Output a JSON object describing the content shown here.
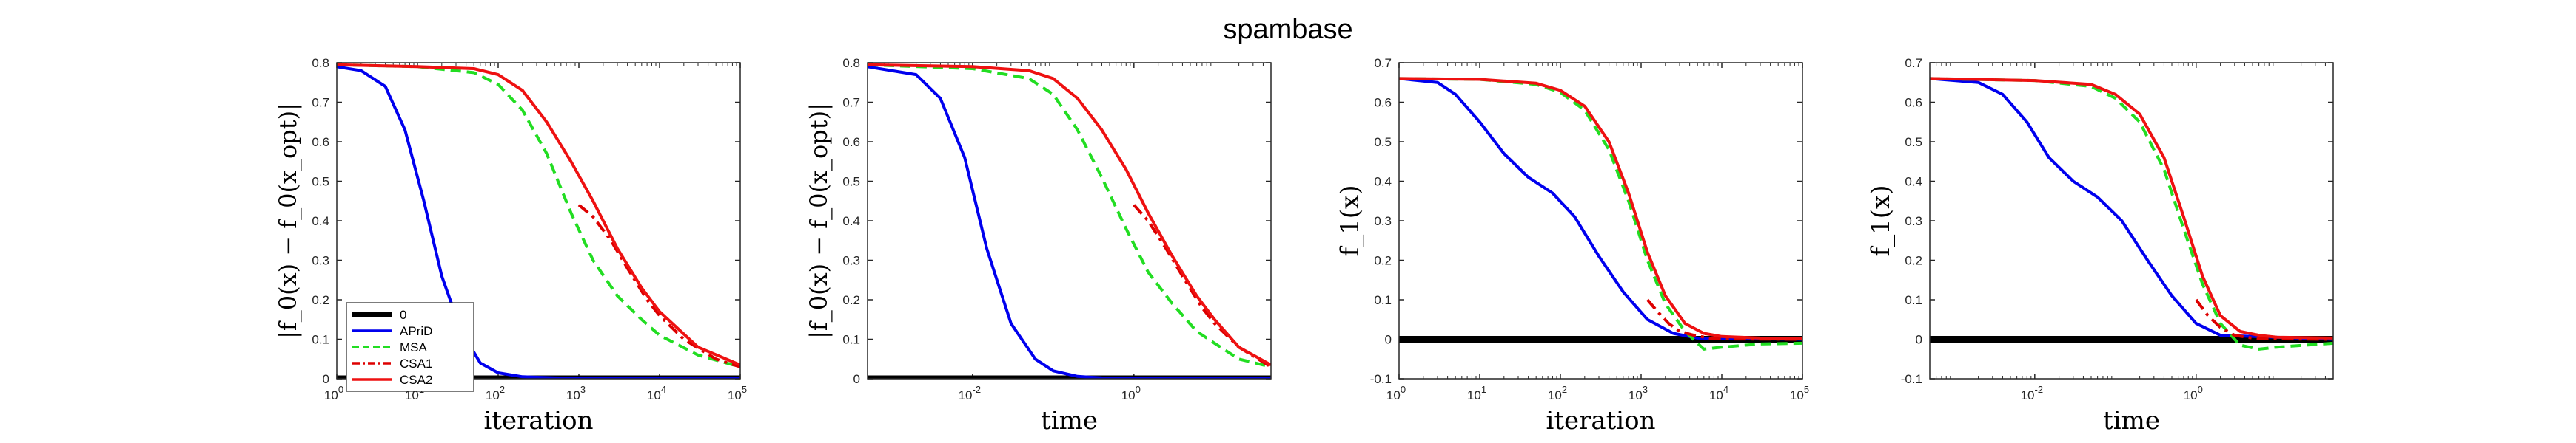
{
  "title": "spambase",
  "colors": {
    "zero": "#000000",
    "apd": "#0000ee",
    "msa": "#22dd22",
    "csa1": "#dd0000",
    "csa2": "#ee1111"
  },
  "legend": {
    "placement": "lower-left of first panel",
    "entries": [
      "0",
      "APriD",
      "MSA",
      "CSA1",
      "CSA2"
    ]
  },
  "chart_data": [
    {
      "type": "line",
      "xlabel": "iteration",
      "ylabel": "|f_0(x) − f_0(x_opt)|",
      "xscale": "log",
      "xlim": [
        1,
        100000
      ],
      "ylim": [
        0,
        0.8
      ],
      "xticks": [
        "10^0",
        "10^1",
        "10^2",
        "10^3",
        "10^4",
        "10^5"
      ],
      "yticks": [
        "0",
        "0.1",
        "0.2",
        "0.3",
        "0.4",
        "0.5",
        "0.6",
        "0.7",
        "0.8"
      ],
      "series": [
        {
          "name": "0",
          "style": "solid-thick",
          "x": [
            1,
            100000
          ],
          "y": [
            0,
            0
          ]
        },
        {
          "name": "APriD",
          "style": "solid",
          "x": [
            1,
            2,
            4,
            7,
            12,
            20,
            35,
            60,
            100,
            200,
            500,
            1000,
            100000
          ],
          "y": [
            0.79,
            0.78,
            0.74,
            0.63,
            0.45,
            0.26,
            0.12,
            0.04,
            0.015,
            0.005,
            0.002,
            0.001,
            0.0
          ]
        },
        {
          "name": "MSA",
          "style": "dashed",
          "x": [
            1,
            10,
            50,
            100,
            200,
            400,
            800,
            1500,
            3000,
            6000,
            10000,
            30000,
            100000
          ],
          "y": [
            0.795,
            0.79,
            0.775,
            0.745,
            0.68,
            0.57,
            0.42,
            0.3,
            0.21,
            0.15,
            0.11,
            0.06,
            0.03
          ]
        },
        {
          "name": "CSA1",
          "style": "dashdot",
          "x": [
            1000,
            1500,
            2500,
            4000,
            7000,
            10000,
            20000,
            50000,
            100000
          ],
          "y": [
            0.44,
            0.41,
            0.35,
            0.28,
            0.2,
            0.16,
            0.1,
            0.05,
            0.03
          ]
        },
        {
          "name": "CSA2",
          "style": "solid",
          "x": [
            1,
            10,
            50,
            100,
            200,
            400,
            800,
            1500,
            3000,
            6000,
            10000,
            30000,
            100000
          ],
          "y": [
            0.795,
            0.79,
            0.785,
            0.77,
            0.73,
            0.65,
            0.55,
            0.45,
            0.33,
            0.23,
            0.17,
            0.08,
            0.035
          ]
        }
      ]
    },
    {
      "type": "line",
      "xlabel": "time",
      "ylabel": "|f_0(x) − f_0(x_opt)|",
      "xscale": "log",
      "xlim": [
        0.0005,
        50
      ],
      "ylim": [
        0,
        0.8
      ],
      "xticks": [
        "10^-2",
        "10^0"
      ],
      "yticks": [
        "0",
        "0.1",
        "0.2",
        "0.3",
        "0.4",
        "0.5",
        "0.6",
        "0.7",
        "0.8"
      ],
      "series": [
        {
          "name": "0",
          "style": "solid-thick",
          "x": [
            0.0005,
            50
          ],
          "y": [
            0,
            0
          ]
        },
        {
          "name": "APriD",
          "style": "solid",
          "x": [
            0.0005,
            0.002,
            0.004,
            0.008,
            0.015,
            0.03,
            0.06,
            0.1,
            0.2,
            0.4,
            50
          ],
          "y": [
            0.79,
            0.77,
            0.71,
            0.56,
            0.33,
            0.14,
            0.05,
            0.02,
            0.006,
            0.002,
            0.0
          ]
        },
        {
          "name": "MSA",
          "style": "dashed",
          "x": [
            0.0005,
            0.01,
            0.05,
            0.1,
            0.2,
            0.4,
            0.8,
            1.5,
            3,
            6,
            10,
            20,
            50
          ],
          "y": [
            0.795,
            0.785,
            0.76,
            0.72,
            0.63,
            0.51,
            0.38,
            0.27,
            0.19,
            0.12,
            0.09,
            0.05,
            0.03
          ]
        },
        {
          "name": "CSA1",
          "style": "dashdot",
          "x": [
            1,
            1.5,
            2.5,
            4,
            7,
            10,
            20,
            50
          ],
          "y": [
            0.44,
            0.4,
            0.33,
            0.26,
            0.18,
            0.14,
            0.08,
            0.03
          ]
        },
        {
          "name": "CSA2",
          "style": "solid",
          "x": [
            0.0005,
            0.01,
            0.05,
            0.1,
            0.2,
            0.4,
            0.8,
            1.5,
            3,
            6,
            10,
            20,
            50
          ],
          "y": [
            0.795,
            0.79,
            0.78,
            0.76,
            0.71,
            0.63,
            0.53,
            0.42,
            0.31,
            0.21,
            0.15,
            0.08,
            0.035
          ]
        }
      ]
    },
    {
      "type": "line",
      "xlabel": "iteration",
      "ylabel": "f_1(x)",
      "xscale": "log",
      "xlim": [
        1,
        100000
      ],
      "ylim": [
        -0.1,
        0.7
      ],
      "xticks": [
        "10^0",
        "10^1",
        "10^2",
        "10^3",
        "10^4",
        "10^5"
      ],
      "yticks": [
        "-0.1",
        "0",
        "0.1",
        "0.2",
        "0.3",
        "0.4",
        "0.5",
        "0.6",
        "0.7"
      ],
      "series": [
        {
          "name": "0",
          "style": "solid-thick",
          "x": [
            1,
            100000
          ],
          "y": [
            0,
            0
          ]
        },
        {
          "name": "APriD",
          "style": "solid",
          "x": [
            1,
            3,
            5,
            10,
            20,
            40,
            80,
            150,
            300,
            600,
            1200,
            2500,
            5000,
            100000
          ],
          "y": [
            0.66,
            0.65,
            0.62,
            0.55,
            0.47,
            0.41,
            0.37,
            0.31,
            0.21,
            0.12,
            0.05,
            0.015,
            0.003,
            0.0
          ]
        },
        {
          "name": "MSA",
          "style": "dashed",
          "x": [
            1,
            10,
            50,
            100,
            200,
            400,
            700,
            1200,
            2000,
            3500,
            6000,
            10000,
            30000,
            100000
          ],
          "y": [
            0.66,
            0.658,
            0.645,
            0.625,
            0.58,
            0.48,
            0.35,
            0.2,
            0.09,
            0.02,
            -0.025,
            -0.02,
            -0.012,
            -0.01
          ]
        },
        {
          "name": "CSA1",
          "style": "dashdot",
          "x": [
            1200,
            1600,
            2200,
            3000,
            4500,
            7000,
            10000,
            100000
          ],
          "y": [
            0.1,
            0.07,
            0.04,
            0.02,
            0.01,
            0.003,
            0.001,
            0.0
          ]
        },
        {
          "name": "CSA2",
          "style": "solid",
          "x": [
            1,
            10,
            50,
            100,
            200,
            400,
            700,
            1200,
            2000,
            3500,
            6000,
            10000,
            30000,
            100000
          ],
          "y": [
            0.66,
            0.658,
            0.648,
            0.63,
            0.59,
            0.5,
            0.37,
            0.22,
            0.11,
            0.04,
            0.015,
            0.007,
            0.003,
            0.002
          ]
        }
      ]
    },
    {
      "type": "line",
      "xlabel": "time",
      "ylabel": "f_1(x)",
      "xscale": "log",
      "xlim": [
        0.0005,
        50
      ],
      "ylim": [
        -0.1,
        0.7
      ],
      "xticks": [
        "10^-2",
        "10^0"
      ],
      "yticks": [
        "-0.1",
        "0",
        "0.1",
        "0.2",
        "0.3",
        "0.4",
        "0.5",
        "0.6",
        "0.7"
      ],
      "series": [
        {
          "name": "0",
          "style": "solid-thick",
          "x": [
            0.0005,
            50
          ],
          "y": [
            0,
            0
          ]
        },
        {
          "name": "APriD",
          "style": "solid",
          "x": [
            0.0005,
            0.002,
            0.004,
            0.008,
            0.015,
            0.03,
            0.06,
            0.12,
            0.25,
            0.5,
            1,
            2,
            50
          ],
          "y": [
            0.66,
            0.65,
            0.62,
            0.55,
            0.46,
            0.4,
            0.36,
            0.3,
            0.2,
            0.11,
            0.04,
            0.01,
            0.0
          ]
        },
        {
          "name": "MSA",
          "style": "dashed",
          "x": [
            0.0005,
            0.01,
            0.05,
            0.1,
            0.2,
            0.4,
            0.7,
            1.2,
            2,
            3.5,
            6,
            10,
            50
          ],
          "y": [
            0.66,
            0.655,
            0.64,
            0.61,
            0.55,
            0.43,
            0.28,
            0.14,
            0.04,
            -0.015,
            -0.025,
            -0.02,
            -0.01
          ]
        },
        {
          "name": "CSA1",
          "style": "dashdot",
          "x": [
            1,
            1.4,
            2,
            3,
            5,
            10,
            50
          ],
          "y": [
            0.1,
            0.06,
            0.03,
            0.01,
            0.003,
            0.001,
            0.0
          ]
        },
        {
          "name": "CSA2",
          "style": "solid",
          "x": [
            0.0005,
            0.01,
            0.05,
            0.1,
            0.2,
            0.4,
            0.7,
            1.2,
            2,
            3.5,
            6,
            10,
            50
          ],
          "y": [
            0.66,
            0.655,
            0.645,
            0.62,
            0.57,
            0.46,
            0.31,
            0.16,
            0.06,
            0.02,
            0.01,
            0.005,
            0.003
          ]
        }
      ]
    }
  ]
}
